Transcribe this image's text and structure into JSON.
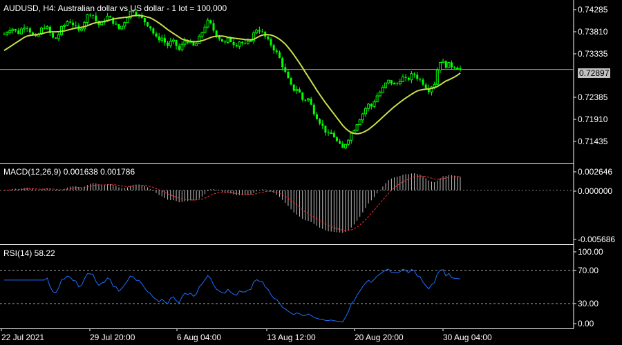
{
  "chart_window": {
    "symbol": "AUDUSD",
    "timeframe": "H4",
    "description": "Australian dollar vs US dollar - 1 lot = 100,000",
    "title_line": "AUDUSD, H4:  Australian dollar vs US dollar - 1 lot = 100,000",
    "current_price": "0.72897",
    "current_price_value": 0.72897
  },
  "colors": {
    "background": "#000000",
    "candles": "#00ff00",
    "moving_average": "#c8e04a",
    "macd_histogram": "#c0c0c0",
    "macd_signal": "#ff3030",
    "rsi_line": "#1e6fff",
    "grid": "#ffffff"
  },
  "chart_data": [
    {
      "type": "candlestick",
      "panel": "price",
      "yticks": [
        "0.74285",
        "0.73810",
        "0.73335",
        "0.72860",
        "0.72385",
        "0.71910",
        "0.71435"
      ],
      "ytick_values": [
        0.74285,
        0.7381,
        0.73335,
        0.7286,
        0.72385,
        0.7191,
        0.71435
      ],
      "ylim": [
        0.709,
        0.7438
      ],
      "xticks": [
        "22 Jul 2021",
        "29 Jul 20:00",
        "6 Aug 04:00",
        "13 Aug 12:00",
        "20 Aug 20:00",
        "30 Aug 04:00"
      ],
      "close_path": [
        0.7365,
        0.7372,
        0.738,
        0.7372,
        0.7368,
        0.7377,
        0.7386,
        0.7375,
        0.7362,
        0.7355,
        0.737,
        0.7382,
        0.7378,
        0.7365,
        0.7352,
        0.736,
        0.7376,
        0.7385,
        0.7395,
        0.739,
        0.738,
        0.737,
        0.7385,
        0.74,
        0.7412,
        0.7405,
        0.739,
        0.7382,
        0.7395,
        0.7402,
        0.7396,
        0.7388,
        0.7375,
        0.7382,
        0.7395,
        0.7409,
        0.7418,
        0.7411,
        0.7402,
        0.7395,
        0.7388,
        0.738,
        0.7365,
        0.7352,
        0.736,
        0.7348,
        0.734,
        0.735,
        0.7345,
        0.733,
        0.7342,
        0.7355,
        0.7348,
        0.7338,
        0.7345,
        0.736,
        0.7378,
        0.7392,
        0.7385,
        0.737,
        0.736,
        0.7352,
        0.7345,
        0.7355,
        0.7348,
        0.7342,
        0.735,
        0.7345,
        0.734,
        0.7352,
        0.7365,
        0.7378,
        0.7372,
        0.7362,
        0.735,
        0.7342,
        0.733,
        0.7318,
        0.73,
        0.728,
        0.7262,
        0.7245,
        0.725,
        0.7238,
        0.722,
        0.7232,
        0.7215,
        0.7198,
        0.7185,
        0.7172,
        0.716,
        0.7148,
        0.7155,
        0.714,
        0.7128,
        0.712,
        0.7135,
        0.7148,
        0.716,
        0.7175,
        0.7188,
        0.72,
        0.7215,
        0.721,
        0.7225,
        0.7238,
        0.7245,
        0.7258,
        0.7265,
        0.726,
        0.7255,
        0.7268,
        0.7272,
        0.7265,
        0.7275,
        0.728,
        0.7272,
        0.7265,
        0.7258,
        0.7245,
        0.7255,
        0.7262,
        0.731,
        0.7305,
        0.7298,
        0.73,
        0.7295,
        0.7298,
        0.729
      ],
      "ma_path": [
        0.733,
        0.7335,
        0.734,
        0.7345,
        0.735,
        0.7355,
        0.736,
        0.7362,
        0.7363,
        0.7364,
        0.7365,
        0.7367,
        0.7369,
        0.737,
        0.737,
        0.737,
        0.7371,
        0.7372,
        0.7374,
        0.7376,
        0.7378,
        0.7379,
        0.738,
        0.7382,
        0.7385,
        0.7388,
        0.739,
        0.7391,
        0.7392,
        0.7394,
        0.7396,
        0.7398,
        0.7399,
        0.74,
        0.7401,
        0.7402,
        0.7404,
        0.7405,
        0.7405,
        0.7404,
        0.7402,
        0.74,
        0.7396,
        0.7391,
        0.7386,
        0.738,
        0.7374,
        0.7369,
        0.7364,
        0.7359,
        0.7354,
        0.7352,
        0.735,
        0.7349,
        0.7349,
        0.735,
        0.7352,
        0.7355,
        0.7358,
        0.736,
        0.7361,
        0.7361,
        0.736,
        0.7358,
        0.7357,
        0.7356,
        0.7355,
        0.7354,
        0.7353,
        0.7353,
        0.7354,
        0.7358,
        0.7362,
        0.7364,
        0.7364,
        0.7363,
        0.736,
        0.7356,
        0.735,
        0.7343,
        0.7334,
        0.7324,
        0.7313,
        0.7302,
        0.729,
        0.7278,
        0.7266,
        0.7254,
        0.7242,
        0.7231,
        0.722,
        0.721,
        0.72,
        0.719,
        0.718,
        0.717,
        0.7162,
        0.7156,
        0.7153,
        0.7152,
        0.7153,
        0.7156,
        0.716,
        0.7166,
        0.7172,
        0.7179,
        0.7186,
        0.7193,
        0.72,
        0.7207,
        0.7213,
        0.7219,
        0.7225,
        0.723,
        0.7235,
        0.724,
        0.7244,
        0.7246,
        0.7247,
        0.7248,
        0.7249,
        0.7251,
        0.7255,
        0.726,
        0.7265,
        0.7268,
        0.7272,
        0.7276,
        0.7282
      ]
    },
    {
      "type": "bar",
      "panel": "macd",
      "label": "MACD(12,26,9) 0.001638 0.001786",
      "yticks": [
        "0.002646",
        "0.000000",
        "-0.005686"
      ],
      "ytick_values": [
        0.002646,
        0.0,
        -0.005686
      ],
      "ylim": [
        -0.006,
        0.0029
      ]
    },
    {
      "type": "line",
      "panel": "rsi",
      "label": "RSI(14) 58.22",
      "yticks": [
        "100.00",
        "70.00",
        "30.00",
        "0.00"
      ],
      "ytick_values": [
        100,
        70,
        30,
        0
      ],
      "ylim": [
        0,
        100
      ]
    }
  ]
}
